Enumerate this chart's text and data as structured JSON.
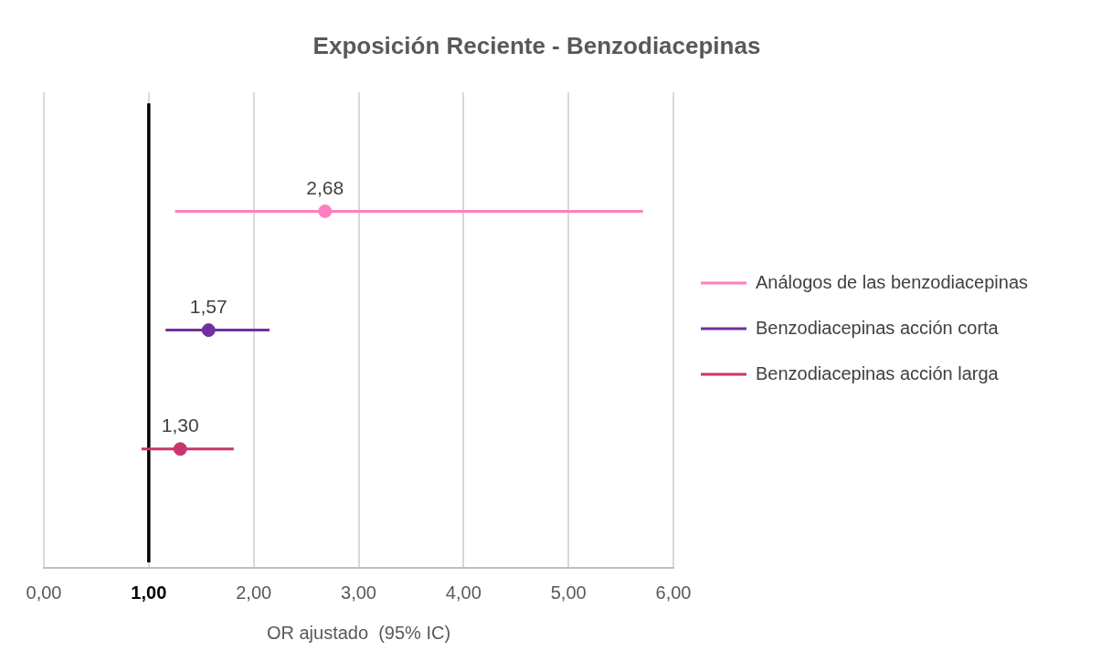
{
  "chart_data": {
    "type": "scatter",
    "orientation": "horizontal",
    "title": "Exposición Reciente - Benzodiacepinas",
    "xlabel": "OR ajustado  (95% IC)",
    "categories": [
      null,
      null,
      null
    ],
    "xlim": [
      0,
      6
    ],
    "xticks": [
      {
        "value": 0,
        "label": "0,00"
      },
      {
        "value": 1,
        "label": "1,00"
      },
      {
        "value": 2,
        "label": "2,00"
      },
      {
        "value": 3,
        "label": "3,00"
      },
      {
        "value": 4,
        "label": "4,00"
      },
      {
        "value": 5,
        "label": "5,00"
      },
      {
        "value": 6,
        "label": "6,00"
      }
    ],
    "tick_labels": "x",
    "grid": "x",
    "legend": "right",
    "marker": "circle",
    "ref_lines": [
      {
        "axis": "x",
        "value": 1,
        "color": "#000000"
      }
    ],
    "series": [
      {
        "name": "Análogos de las benzodiacepinas",
        "color": "#ff7fbf",
        "values": [
          2.68,
          null,
          null
        ],
        "errors": [
          [
            1.25,
            5.71
          ],
          null,
          null
        ],
        "value_labels": [
          "2,68",
          null,
          null
        ]
      },
      {
        "name": "Benzodiacepinas acción corta",
        "color": "#7030a0",
        "values": [
          null,
          1.57,
          null
        ],
        "errors": [
          null,
          [
            1.16,
            2.15
          ],
          null
        ],
        "value_labels": [
          null,
          "1,57",
          null
        ]
      },
      {
        "name": "Benzodiacepinas acción larga",
        "color": "#c9356e",
        "values": [
          null,
          null,
          1.3
        ],
        "errors": [
          null,
          null,
          [
            0.93,
            1.81
          ]
        ],
        "value_labels": [
          null,
          null,
          "1,30"
        ]
      }
    ]
  }
}
